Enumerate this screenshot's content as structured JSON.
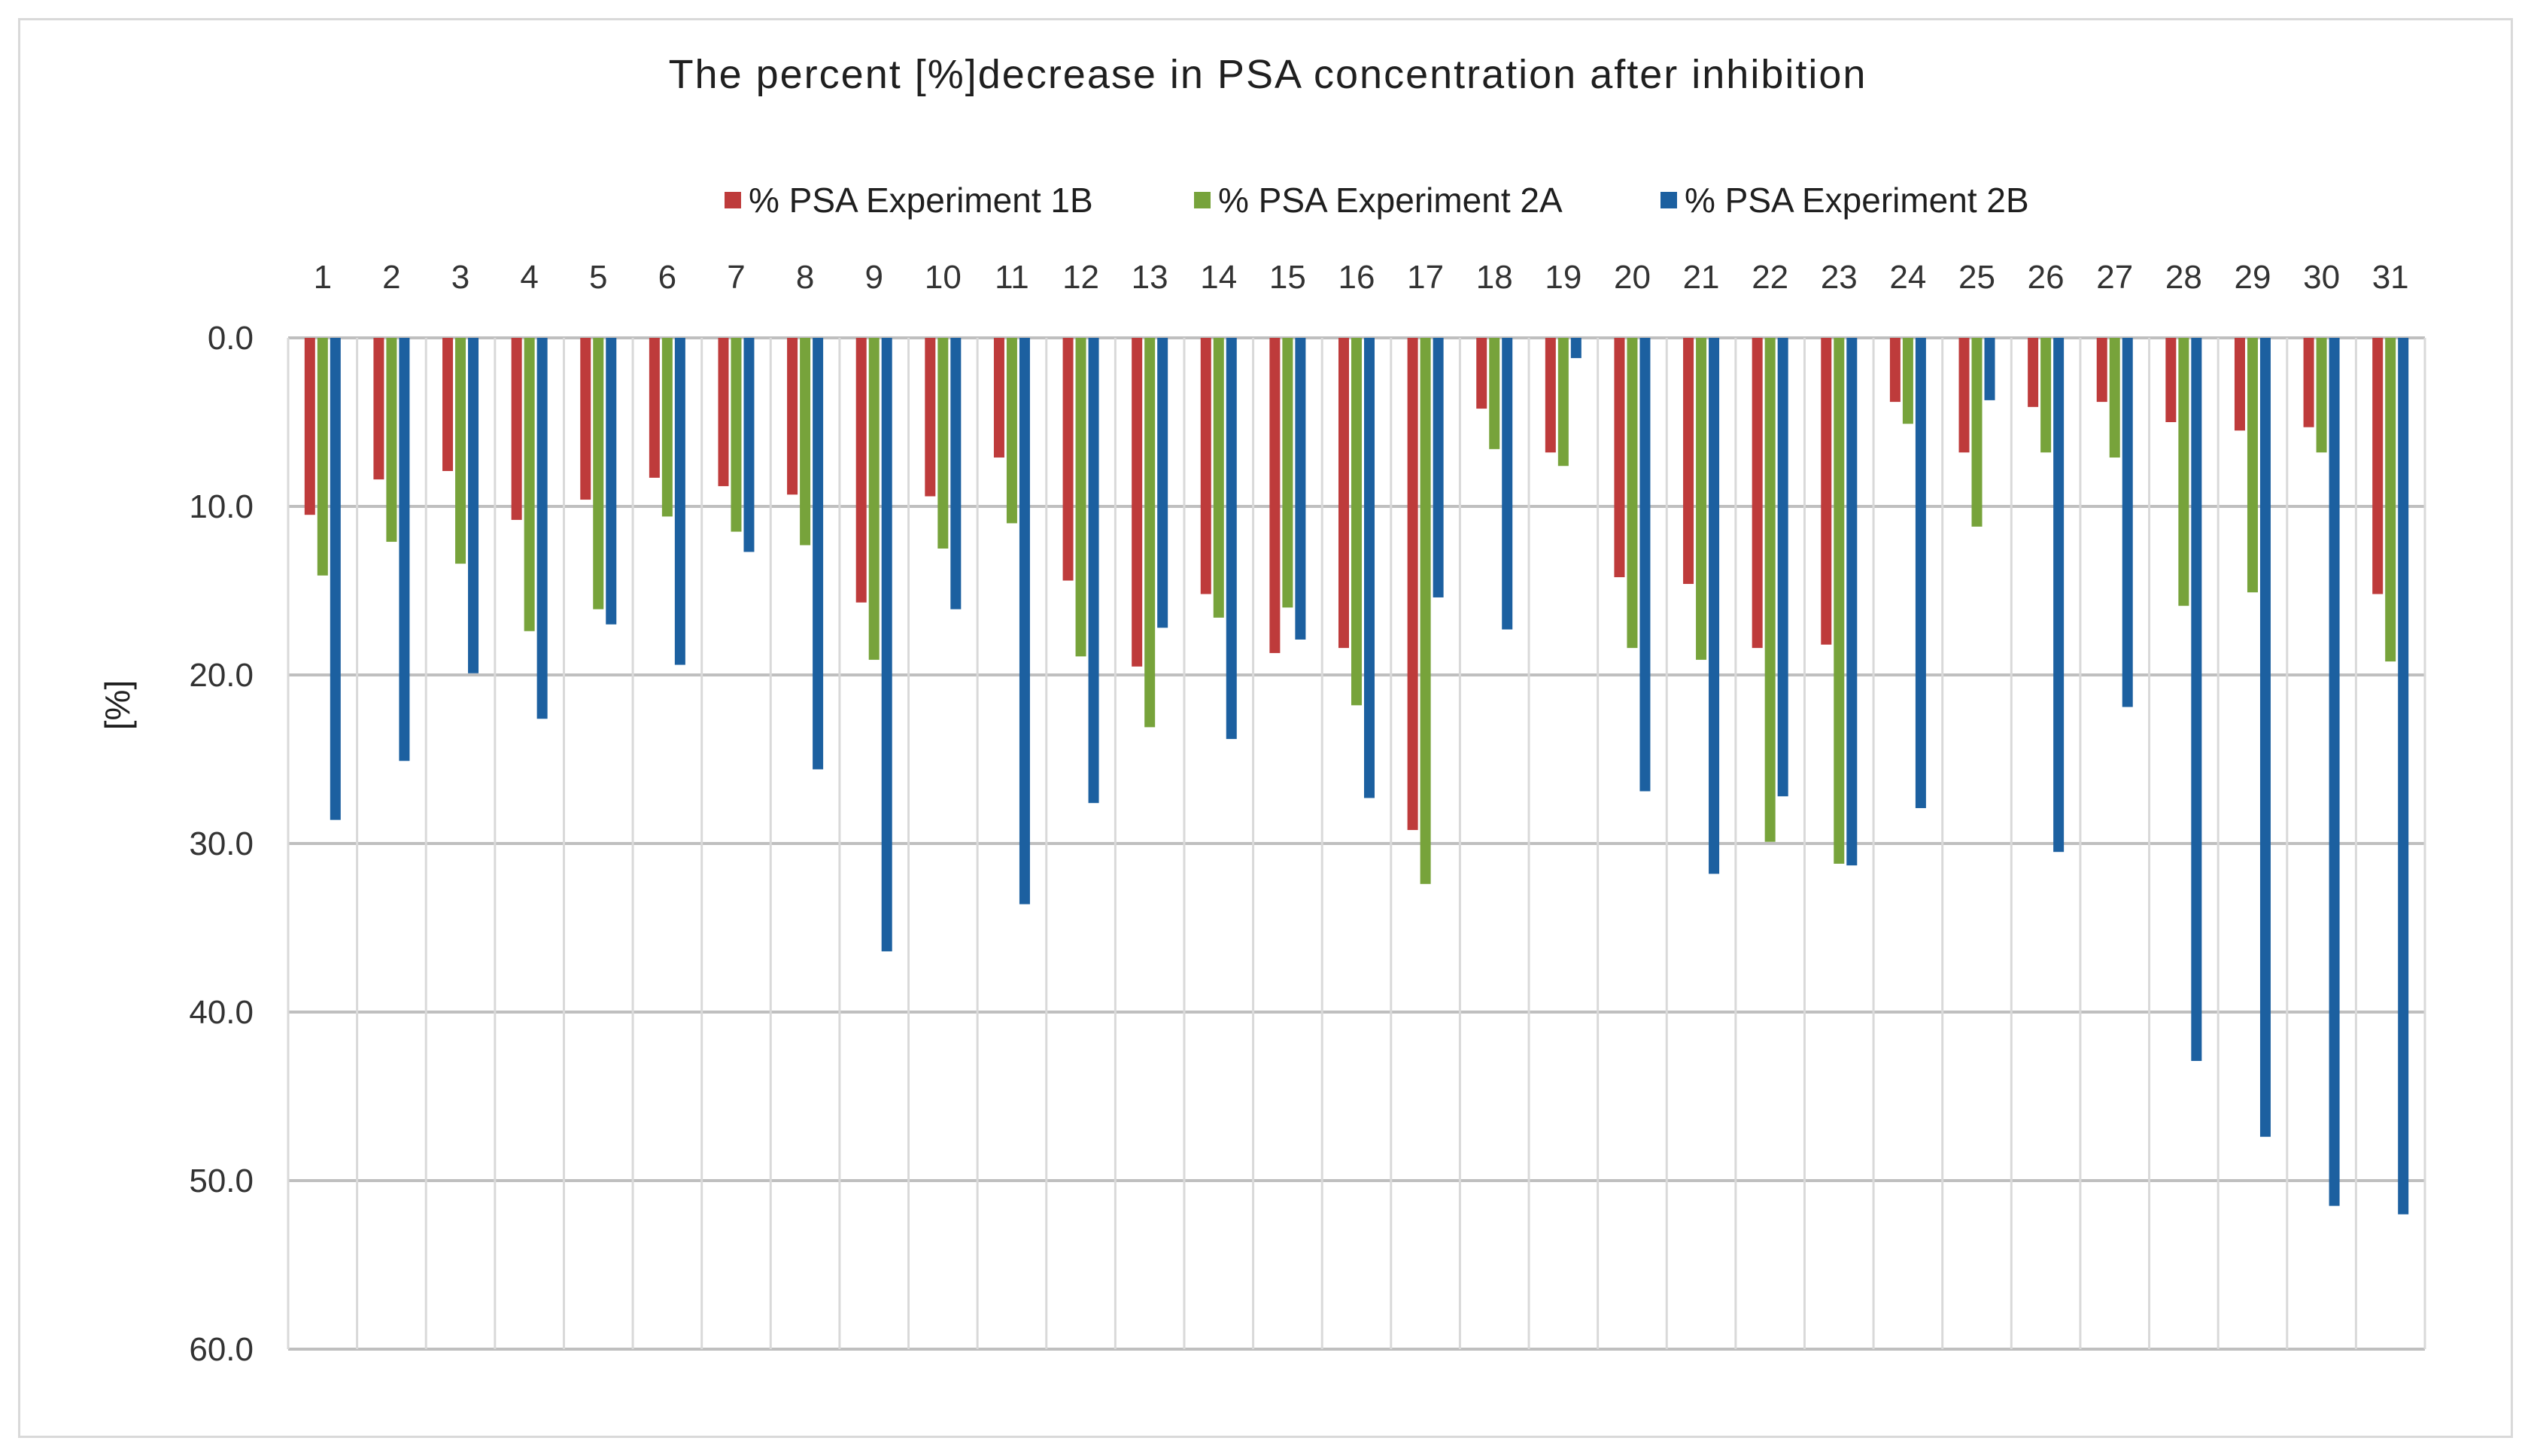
{
  "chart_data": {
    "type": "bar",
    "title": "The percent [%]decrease in PSA concentration after inhibition",
    "xlabel": "",
    "ylabel": "[%]",
    "ylim": [
      0,
      60
    ],
    "y_inverted": true,
    "x_axis_position": "top",
    "grid": true,
    "legend_position": "top",
    "y_ticks": [
      "0.0",
      "10.0",
      "20.0",
      "30.0",
      "40.0",
      "50.0",
      "60.0"
    ],
    "categories": [
      "1",
      "2",
      "3",
      "4",
      "5",
      "6",
      "7",
      "8",
      "9",
      "10",
      "11",
      "12",
      "13",
      "14",
      "15",
      "16",
      "17",
      "18",
      "19",
      "20",
      "21",
      "22",
      "23",
      "24",
      "25",
      "26",
      "27",
      "28",
      "29",
      "30",
      "31"
    ],
    "series": [
      {
        "name": "% PSA Experiment 1B",
        "color": "#be3b3b",
        "values": [
          10.5,
          8.4,
          7.9,
          10.8,
          9.6,
          8.3,
          8.8,
          9.3,
          15.7,
          9.4,
          7.1,
          14.4,
          19.5,
          15.2,
          18.7,
          18.4,
          29.2,
          4.2,
          6.8,
          14.2,
          14.6,
          18.4,
          18.2,
          3.8,
          6.8,
          4.1,
          3.8,
          5.0,
          5.5,
          5.3,
          15.2
        ]
      },
      {
        "name": "% PSA Experiment 2A",
        "color": "#77a33b",
        "values": [
          14.1,
          12.1,
          13.4,
          17.4,
          16.1,
          10.6,
          11.5,
          12.3,
          19.1,
          12.5,
          11.0,
          18.9,
          23.1,
          16.6,
          16.0,
          21.8,
          32.4,
          6.6,
          7.6,
          18.4,
          19.1,
          29.9,
          31.2,
          5.1,
          11.2,
          6.8,
          7.1,
          15.9,
          15.1,
          6.8,
          19.2
        ]
      },
      {
        "name": "% PSA Experiment 2B",
        "color": "#1c60a0",
        "values": [
          28.6,
          25.1,
          19.9,
          22.6,
          17.0,
          19.4,
          12.7,
          25.6,
          36.4,
          16.1,
          33.6,
          27.6,
          17.2,
          23.8,
          17.9,
          27.3,
          15.4,
          17.3,
          1.2,
          26.9,
          31.8,
          27.2,
          31.3,
          27.9,
          3.7,
          30.5,
          21.9,
          42.9,
          47.4,
          51.5,
          52.0
        ]
      }
    ]
  }
}
